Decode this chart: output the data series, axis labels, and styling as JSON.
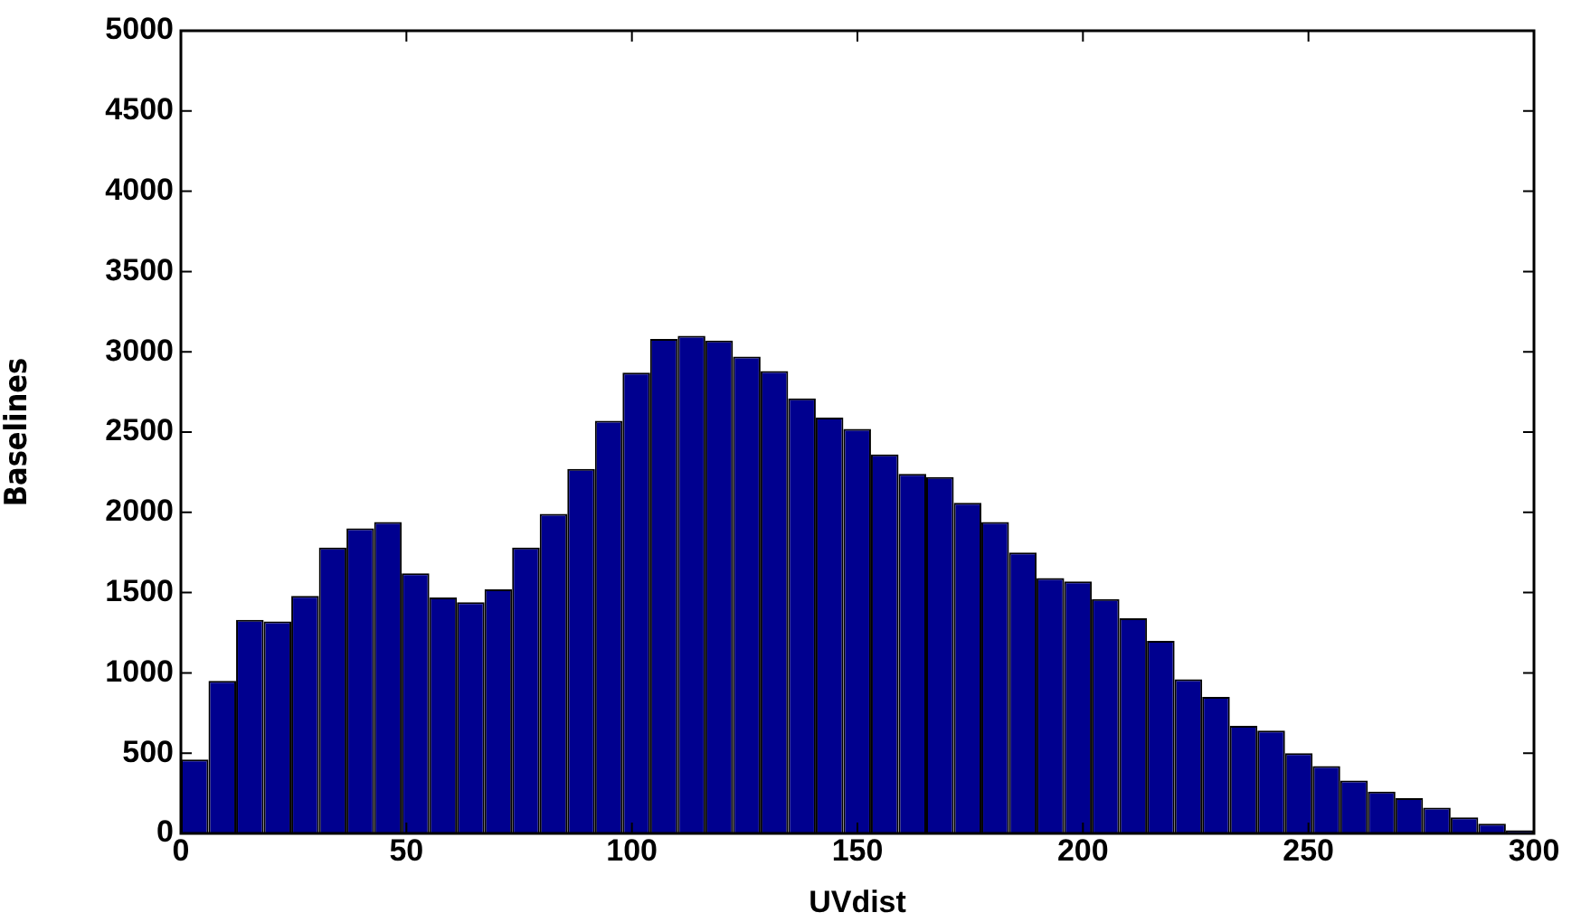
{
  "chart_data": {
    "type": "histogram",
    "xlabel": "UVdist",
    "ylabel": "Baselines",
    "color": "#00008f",
    "bins": [
      0,
      6.12,
      12.24,
      18.36,
      24.48,
      30.6,
      36.72,
      42.84,
      48.96,
      55.08,
      61.2,
      67.32,
      73.44,
      79.56,
      85.68,
      91.8,
      97.92,
      104.04,
      110.16,
      116.28,
      122.4,
      128.52,
      134.64,
      140.76,
      146.88,
      153,
      159.12,
      165.24,
      171.36,
      177.48,
      183.6,
      189.72,
      195.84,
      201.96,
      208.08,
      214.2,
      220.32,
      226.44,
      232.56,
      238.68,
      244.8,
      250.92,
      257.04,
      263.16,
      269.28,
      275.4,
      281.52,
      287.64,
      293.76,
      299.88
    ],
    "values": [
      460,
      950,
      1330,
      1320,
      1480,
      1780,
      1900,
      1940,
      1620,
      1470,
      1440,
      1520,
      1780,
      1990,
      2270,
      2570,
      2870,
      3080,
      3100,
      3070,
      2970,
      2880,
      2710,
      2590,
      2520,
      2360,
      2240,
      2220,
      2060,
      1940,
      1750,
      1590,
      1570,
      1460,
      1340,
      1200,
      960,
      850,
      670,
      640,
      500,
      420,
      330,
      260,
      220,
      160,
      100,
      60,
      20
    ],
    "xlim": [
      0,
      300
    ],
    "xticks": [
      0,
      50,
      100,
      150,
      200,
      250,
      300
    ],
    "ylim": [
      0,
      5000
    ],
    "yticks": [
      0,
      500,
      1000,
      1500,
      2000,
      2500,
      3000,
      3500,
      4000,
      4500,
      5000
    ],
    "grid": false,
    "legend": false
  }
}
